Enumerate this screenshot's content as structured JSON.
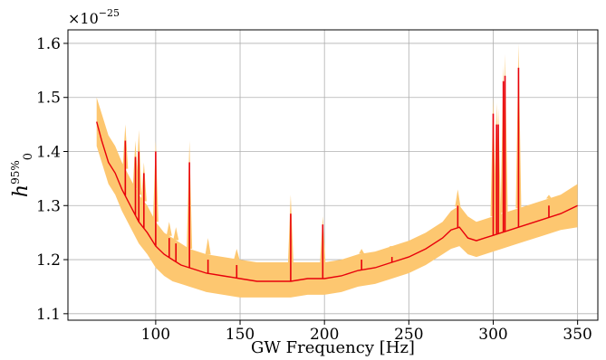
{
  "chart_data": {
    "type": "line",
    "xlabel": "GW Frequency [Hz]",
    "ylabel": "h",
    "ylabel_subscript": "0",
    "ylabel_superscript": "95%",
    "y_exponent_base": "×10",
    "y_exponent_power": "−25",
    "xlim": [
      48,
      362
    ],
    "ylim": [
      1.088,
      1.625
    ],
    "x_ticks": [
      100,
      150,
      200,
      250,
      300,
      350
    ],
    "x_tick_labels": [
      "100",
      "150",
      "200",
      "250",
      "300",
      "350"
    ],
    "y_ticks": [
      1.1,
      1.2,
      1.3,
      1.4,
      1.5,
      1.6
    ],
    "y_tick_labels": [
      "1.1",
      "1.2",
      "1.3",
      "1.4",
      "1.5",
      "1.6"
    ],
    "grid": true,
    "colors": {
      "median": "#e8000b",
      "band": "#fdc770"
    },
    "series": [
      {
        "role": "median",
        "x": [
          65,
          68,
          72,
          76,
          80,
          85,
          90,
          95,
          100,
          105,
          110,
          115,
          120,
          125,
          130,
          140,
          150,
          160,
          170,
          180,
          190,
          200,
          210,
          220,
          230,
          240,
          250,
          260,
          270,
          275,
          280,
          285,
          290,
          295,
          300,
          305,
          310,
          315,
          320,
          330,
          340,
          350
        ],
        "y": [
          1.455,
          1.42,
          1.38,
          1.36,
          1.33,
          1.3,
          1.27,
          1.25,
          1.225,
          1.21,
          1.2,
          1.19,
          1.185,
          1.18,
          1.175,
          1.17,
          1.165,
          1.16,
          1.16,
          1.16,
          1.165,
          1.165,
          1.17,
          1.18,
          1.185,
          1.195,
          1.205,
          1.22,
          1.24,
          1.255,
          1.26,
          1.24,
          1.235,
          1.24,
          1.245,
          1.25,
          1.255,
          1.26,
          1.265,
          1.275,
          1.285,
          1.3
        ]
      },
      {
        "role": "band-upper",
        "x": [
          65,
          68,
          72,
          76,
          80,
          85,
          90,
          95,
          100,
          105,
          110,
          115,
          120,
          125,
          130,
          140,
          150,
          160,
          170,
          180,
          190,
          200,
          210,
          220,
          230,
          240,
          250,
          260,
          270,
          275,
          280,
          285,
          290,
          295,
          300,
          305,
          310,
          315,
          320,
          330,
          340,
          350
        ],
        "y": [
          1.5,
          1.47,
          1.43,
          1.41,
          1.38,
          1.35,
          1.32,
          1.3,
          1.27,
          1.25,
          1.24,
          1.23,
          1.22,
          1.215,
          1.21,
          1.205,
          1.2,
          1.195,
          1.195,
          1.195,
          1.195,
          1.195,
          1.2,
          1.21,
          1.215,
          1.225,
          1.235,
          1.25,
          1.27,
          1.29,
          1.3,
          1.28,
          1.27,
          1.275,
          1.28,
          1.285,
          1.29,
          1.295,
          1.3,
          1.31,
          1.32,
          1.34
        ]
      },
      {
        "role": "band-lower",
        "x": [
          65,
          68,
          72,
          76,
          80,
          85,
          90,
          95,
          100,
          105,
          110,
          115,
          120,
          125,
          130,
          140,
          150,
          160,
          170,
          180,
          190,
          200,
          210,
          220,
          230,
          240,
          250,
          260,
          270,
          275,
          280,
          285,
          290,
          295,
          300,
          305,
          310,
          315,
          320,
          330,
          340,
          350
        ],
        "y": [
          1.41,
          1.38,
          1.34,
          1.32,
          1.29,
          1.26,
          1.23,
          1.21,
          1.185,
          1.17,
          1.16,
          1.155,
          1.15,
          1.145,
          1.14,
          1.135,
          1.13,
          1.13,
          1.13,
          1.13,
          1.135,
          1.135,
          1.14,
          1.15,
          1.155,
          1.165,
          1.175,
          1.19,
          1.21,
          1.22,
          1.225,
          1.21,
          1.205,
          1.21,
          1.215,
          1.22,
          1.225,
          1.23,
          1.235,
          1.245,
          1.255,
          1.26
        ]
      }
    ],
    "spikes": [
      {
        "x": 82,
        "y": 1.42,
        "y_upper": 1.45
      },
      {
        "x": 88,
        "y": 1.39,
        "y_upper": 1.42
      },
      {
        "x": 90,
        "y": 1.4,
        "y_upper": 1.44
      },
      {
        "x": 93,
        "y": 1.36,
        "y_upper": 1.38
      },
      {
        "x": 100,
        "y": 1.4,
        "y_upper": 1.42
      },
      {
        "x": 108,
        "y": 1.24,
        "y_upper": 1.27
      },
      {
        "x": 112,
        "y": 1.23,
        "y_upper": 1.26
      },
      {
        "x": 120,
        "y": 1.38,
        "y_upper": 1.42
      },
      {
        "x": 131,
        "y": 1.2,
        "y_upper": 1.24
      },
      {
        "x": 148,
        "y": 1.19,
        "y_upper": 1.22
      },
      {
        "x": 180,
        "y": 1.285,
        "y_upper": 1.32
      },
      {
        "x": 199,
        "y": 1.265,
        "y_upper": 1.28
      },
      {
        "x": 222,
        "y": 1.2,
        "y_upper": 1.22
      },
      {
        "x": 240,
        "y": 1.205,
        "y_upper": 1.22
      },
      {
        "x": 279,
        "y": 1.3,
        "y_upper": 1.33
      },
      {
        "x": 300,
        "y": 1.47,
        "y_upper": 1.5
      },
      {
        "x": 302,
        "y": 1.45,
        "y_upper": 1.49
      },
      {
        "x": 303,
        "y": 1.45,
        "y_upper": 1.48
      },
      {
        "x": 306,
        "y": 1.53,
        "y_upper": 1.56
      },
      {
        "x": 307,
        "y": 1.54,
        "y_upper": 1.58
      },
      {
        "x": 315,
        "y": 1.555,
        "y_upper": 1.6
      },
      {
        "x": 333,
        "y": 1.3,
        "y_upper": 1.32
      }
    ]
  }
}
